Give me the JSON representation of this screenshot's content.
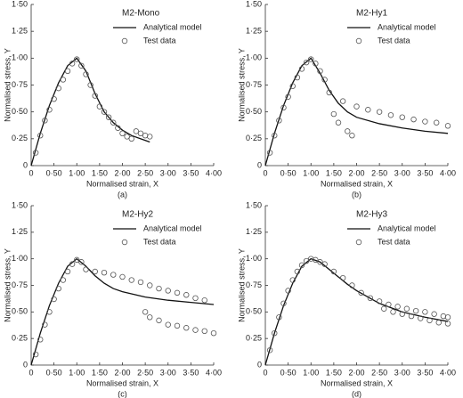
{
  "chart_data": [
    {
      "type": "line",
      "title": "M2-Mono",
      "xlabel": "Normalised strain, X",
      "ylabel": "Normalised stress, Y",
      "caption": "(a)",
      "xlim": [
        0,
        4
      ],
      "ylim": [
        0,
        1.5
      ],
      "xticks": [
        0,
        {
          "value": 0.5,
          "label": "0·50"
        },
        {
          "value": 1,
          "label": "1·00"
        },
        {
          "value": 1.5,
          "label": "1·50"
        },
        {
          "value": 2,
          "label": "2·00"
        },
        {
          "value": 2.5,
          "label": "2·50"
        },
        {
          "value": 3,
          "label": "3·00"
        },
        {
          "value": 3.5,
          "label": "3·50"
        },
        {
          "value": 4,
          "label": "4·00"
        }
      ],
      "yticks": [
        0,
        {
          "value": 0.25,
          "label": "0·25"
        },
        {
          "value": 0.5,
          "label": "0·50"
        },
        {
          "value": 0.75,
          "label": "0·75"
        },
        {
          "value": 1,
          "label": "1·00"
        },
        {
          "value": 1.25,
          "label": "1·25"
        },
        {
          "value": 1.5,
          "label": "1·50"
        }
      ],
      "series": [
        {
          "name": "Analytical model",
          "mark": "line",
          "color": "#111111",
          "x": [
            0,
            0.2,
            0.4,
            0.6,
            0.8,
            1.0,
            1.2,
            1.4,
            1.6,
            1.8,
            2.0,
            2.2,
            2.4,
            2.6
          ],
          "values": [
            0,
            0.3,
            0.56,
            0.77,
            0.93,
            1.0,
            0.88,
            0.67,
            0.5,
            0.4,
            0.33,
            0.28,
            0.25,
            0.22
          ]
        },
        {
          "name": "Test data",
          "mark": "marker",
          "color": "#555555",
          "x": [
            0.1,
            0.2,
            0.3,
            0.4,
            0.5,
            0.6,
            0.7,
            0.8,
            0.9,
            1.0,
            1.1,
            1.2,
            1.3,
            1.4,
            1.5,
            1.6,
            1.7,
            1.8,
            1.9,
            2.0,
            2.1,
            2.2,
            2.3,
            2.4,
            2.5,
            2.6
          ],
          "values": [
            0.12,
            0.28,
            0.42,
            0.52,
            0.62,
            0.72,
            0.8,
            0.88,
            0.95,
            0.99,
            0.93,
            0.85,
            0.75,
            0.65,
            0.55,
            0.5,
            0.45,
            0.4,
            0.35,
            0.3,
            0.27,
            0.25,
            0.32,
            0.3,
            0.28,
            0.27
          ]
        }
      ]
    },
    {
      "type": "line",
      "title": "M2-Hy1",
      "xlabel": "Normalised strain, X",
      "ylabel": "Normalised stress, Y",
      "caption": "(b)",
      "xlim": [
        0,
        4
      ],
      "ylim": [
        0,
        1.5
      ],
      "xticks": [
        0,
        {
          "value": 0.5,
          "label": "0·50"
        },
        {
          "value": 1,
          "label": "1·00"
        },
        {
          "value": 1.5,
          "label": "1·50"
        },
        {
          "value": 2,
          "label": "2·00"
        },
        {
          "value": 2.5,
          "label": "2·50"
        },
        {
          "value": 3,
          "label": "3·00"
        },
        {
          "value": 3.5,
          "label": "3·50"
        },
        {
          "value": 4,
          "label": "4·00"
        }
      ],
      "yticks": [
        0,
        {
          "value": 0.25,
          "label": "0·25"
        },
        {
          "value": 0.5,
          "label": "0·50"
        },
        {
          "value": 0.75,
          "label": "0·75"
        },
        {
          "value": 1,
          "label": "1·00"
        },
        {
          "value": 1.25,
          "label": "1·25"
        },
        {
          "value": 1.5,
          "label": "1·50"
        }
      ],
      "series": [
        {
          "name": "Analytical model",
          "mark": "line",
          "color": "#111111",
          "x": [
            0,
            0.2,
            0.4,
            0.6,
            0.8,
            1.0,
            1.2,
            1.4,
            1.6,
            1.8,
            2.0,
            2.5,
            3.0,
            3.5,
            4.0
          ],
          "values": [
            0,
            0.3,
            0.56,
            0.77,
            0.93,
            1.0,
            0.86,
            0.7,
            0.58,
            0.5,
            0.45,
            0.39,
            0.35,
            0.32,
            0.3
          ]
        },
        {
          "name": "Test data",
          "mark": "marker",
          "color": "#555555",
          "x": [
            0.1,
            0.2,
            0.3,
            0.4,
            0.5,
            0.6,
            0.7,
            0.8,
            0.9,
            1.0,
            1.1,
            1.2,
            1.3,
            1.4,
            1.5,
            1.6,
            1.7,
            1.8,
            1.9,
            2.0,
            2.25,
            2.5,
            2.75,
            3.0,
            3.25,
            3.5,
            3.75,
            4.0
          ],
          "values": [
            0.12,
            0.28,
            0.42,
            0.54,
            0.64,
            0.74,
            0.82,
            0.9,
            0.96,
            0.99,
            0.95,
            0.88,
            0.8,
            0.68,
            0.48,
            0.4,
            0.6,
            0.32,
            0.28,
            0.55,
            0.52,
            0.5,
            0.47,
            0.45,
            0.43,
            0.41,
            0.4,
            0.37
          ]
        }
      ]
    },
    {
      "type": "line",
      "title": "M2-Hy2",
      "xlabel": "Normalised strain, X",
      "ylabel": "Normalised stress, Y",
      "caption": "(c)",
      "xlim": [
        0,
        4
      ],
      "ylim": [
        0,
        1.5
      ],
      "xticks": [
        0,
        {
          "value": 0.5,
          "label": "0·50"
        },
        {
          "value": 1,
          "label": "1·00"
        },
        {
          "value": 1.5,
          "label": "1·50"
        },
        {
          "value": 2,
          "label": "2·00"
        },
        {
          "value": 2.5,
          "label": "2·50"
        },
        {
          "value": 3,
          "label": "3·00"
        },
        {
          "value": 3.5,
          "label": "3·50"
        },
        {
          "value": 4,
          "label": "4·00"
        }
      ],
      "yticks": [
        0,
        {
          "value": 0.25,
          "label": "0·25"
        },
        {
          "value": 0.5,
          "label": "0·50"
        },
        {
          "value": 0.75,
          "label": "0·75"
        },
        {
          "value": 1,
          "label": "1·00"
        },
        {
          "value": 1.25,
          "label": "1·25"
        },
        {
          "value": 1.5,
          "label": "1·50"
        }
      ],
      "series": [
        {
          "name": "Analytical model",
          "mark": "line",
          "color": "#111111",
          "x": [
            0,
            0.2,
            0.4,
            0.6,
            0.8,
            1.0,
            1.2,
            1.4,
            1.6,
            1.8,
            2.0,
            2.5,
            3.0,
            3.5,
            4.0
          ],
          "values": [
            0,
            0.3,
            0.56,
            0.77,
            0.93,
            1.0,
            0.93,
            0.84,
            0.77,
            0.72,
            0.69,
            0.64,
            0.61,
            0.59,
            0.57
          ]
        },
        {
          "name": "Test data",
          "mark": "marker",
          "color": "#555555",
          "x": [
            0.1,
            0.2,
            0.3,
            0.4,
            0.5,
            0.6,
            0.7,
            0.8,
            0.9,
            1.0,
            1.1,
            1.2,
            1.4,
            1.6,
            1.8,
            2.0,
            2.2,
            2.4,
            2.6,
            2.8,
            3.0,
            3.2,
            3.4,
            3.6,
            3.8,
            2.5,
            2.6,
            2.8,
            3.0,
            3.2,
            3.4,
            3.6,
            3.8,
            4.0
          ],
          "values": [
            0.1,
            0.24,
            0.38,
            0.5,
            0.62,
            0.72,
            0.8,
            0.88,
            0.95,
            0.99,
            0.97,
            0.9,
            0.88,
            0.87,
            0.85,
            0.83,
            0.8,
            0.78,
            0.75,
            0.72,
            0.7,
            0.68,
            0.66,
            0.63,
            0.61,
            0.5,
            0.45,
            0.42,
            0.38,
            0.37,
            0.35,
            0.33,
            0.32,
            0.3
          ]
        }
      ]
    },
    {
      "type": "line",
      "title": "M2-Hy3",
      "xlabel": "Normalised strain, X",
      "ylabel": "Normalised stress, Y",
      "caption": "(d)",
      "xlim": [
        0,
        4
      ],
      "ylim": [
        0,
        1.5
      ],
      "xticks": [
        0,
        {
          "value": 0.5,
          "label": "0·50"
        },
        {
          "value": 1,
          "label": "1·00"
        },
        {
          "value": 1.5,
          "label": "1·50"
        },
        {
          "value": 2,
          "label": "2·00"
        },
        {
          "value": 2.5,
          "label": "2·50"
        },
        {
          "value": 3,
          "label": "3·00"
        },
        {
          "value": 3.5,
          "label": "3·50"
        },
        {
          "value": 4,
          "label": "4·00"
        }
      ],
      "yticks": [
        0,
        {
          "value": 0.25,
          "label": "0·25"
        },
        {
          "value": 0.5,
          "label": "0·50"
        },
        {
          "value": 0.75,
          "label": "0·75"
        },
        {
          "value": 1,
          "label": "1·00"
        },
        {
          "value": 1.25,
          "label": "1·25"
        },
        {
          "value": 1.5,
          "label": "1·50"
        }
      ],
      "series": [
        {
          "name": "Analytical model",
          "mark": "line",
          "color": "#111111",
          "x": [
            0,
            0.2,
            0.4,
            0.6,
            0.8,
            1.0,
            1.2,
            1.4,
            1.6,
            1.8,
            2.0,
            2.5,
            3.0,
            3.5,
            4.0
          ],
          "values": [
            0,
            0.3,
            0.56,
            0.77,
            0.93,
            1.0,
            0.97,
            0.9,
            0.83,
            0.76,
            0.7,
            0.58,
            0.5,
            0.45,
            0.41
          ]
        },
        {
          "name": "Test data",
          "mark": "marker",
          "color": "#555555",
          "x": [
            0.1,
            0.2,
            0.3,
            0.4,
            0.5,
            0.6,
            0.7,
            0.8,
            0.9,
            1.0,
            1.1,
            1.2,
            1.3,
            1.5,
            1.7,
            1.9,
            2.1,
            2.3,
            2.5,
            2.7,
            2.9,
            3.1,
            3.3,
            3.5,
            3.7,
            3.9,
            4.0,
            2.6,
            2.8,
            3.0,
            3.2,
            3.4,
            3.6,
            3.8,
            4.0
          ],
          "values": [
            0.14,
            0.3,
            0.45,
            0.58,
            0.7,
            0.8,
            0.88,
            0.94,
            0.98,
            1.0,
            0.99,
            0.97,
            0.95,
            0.88,
            0.82,
            0.75,
            0.68,
            0.63,
            0.6,
            0.57,
            0.55,
            0.53,
            0.51,
            0.5,
            0.48,
            0.46,
            0.45,
            0.53,
            0.5,
            0.48,
            0.46,
            0.44,
            0.42,
            0.4,
            0.39
          ]
        }
      ]
    }
  ]
}
